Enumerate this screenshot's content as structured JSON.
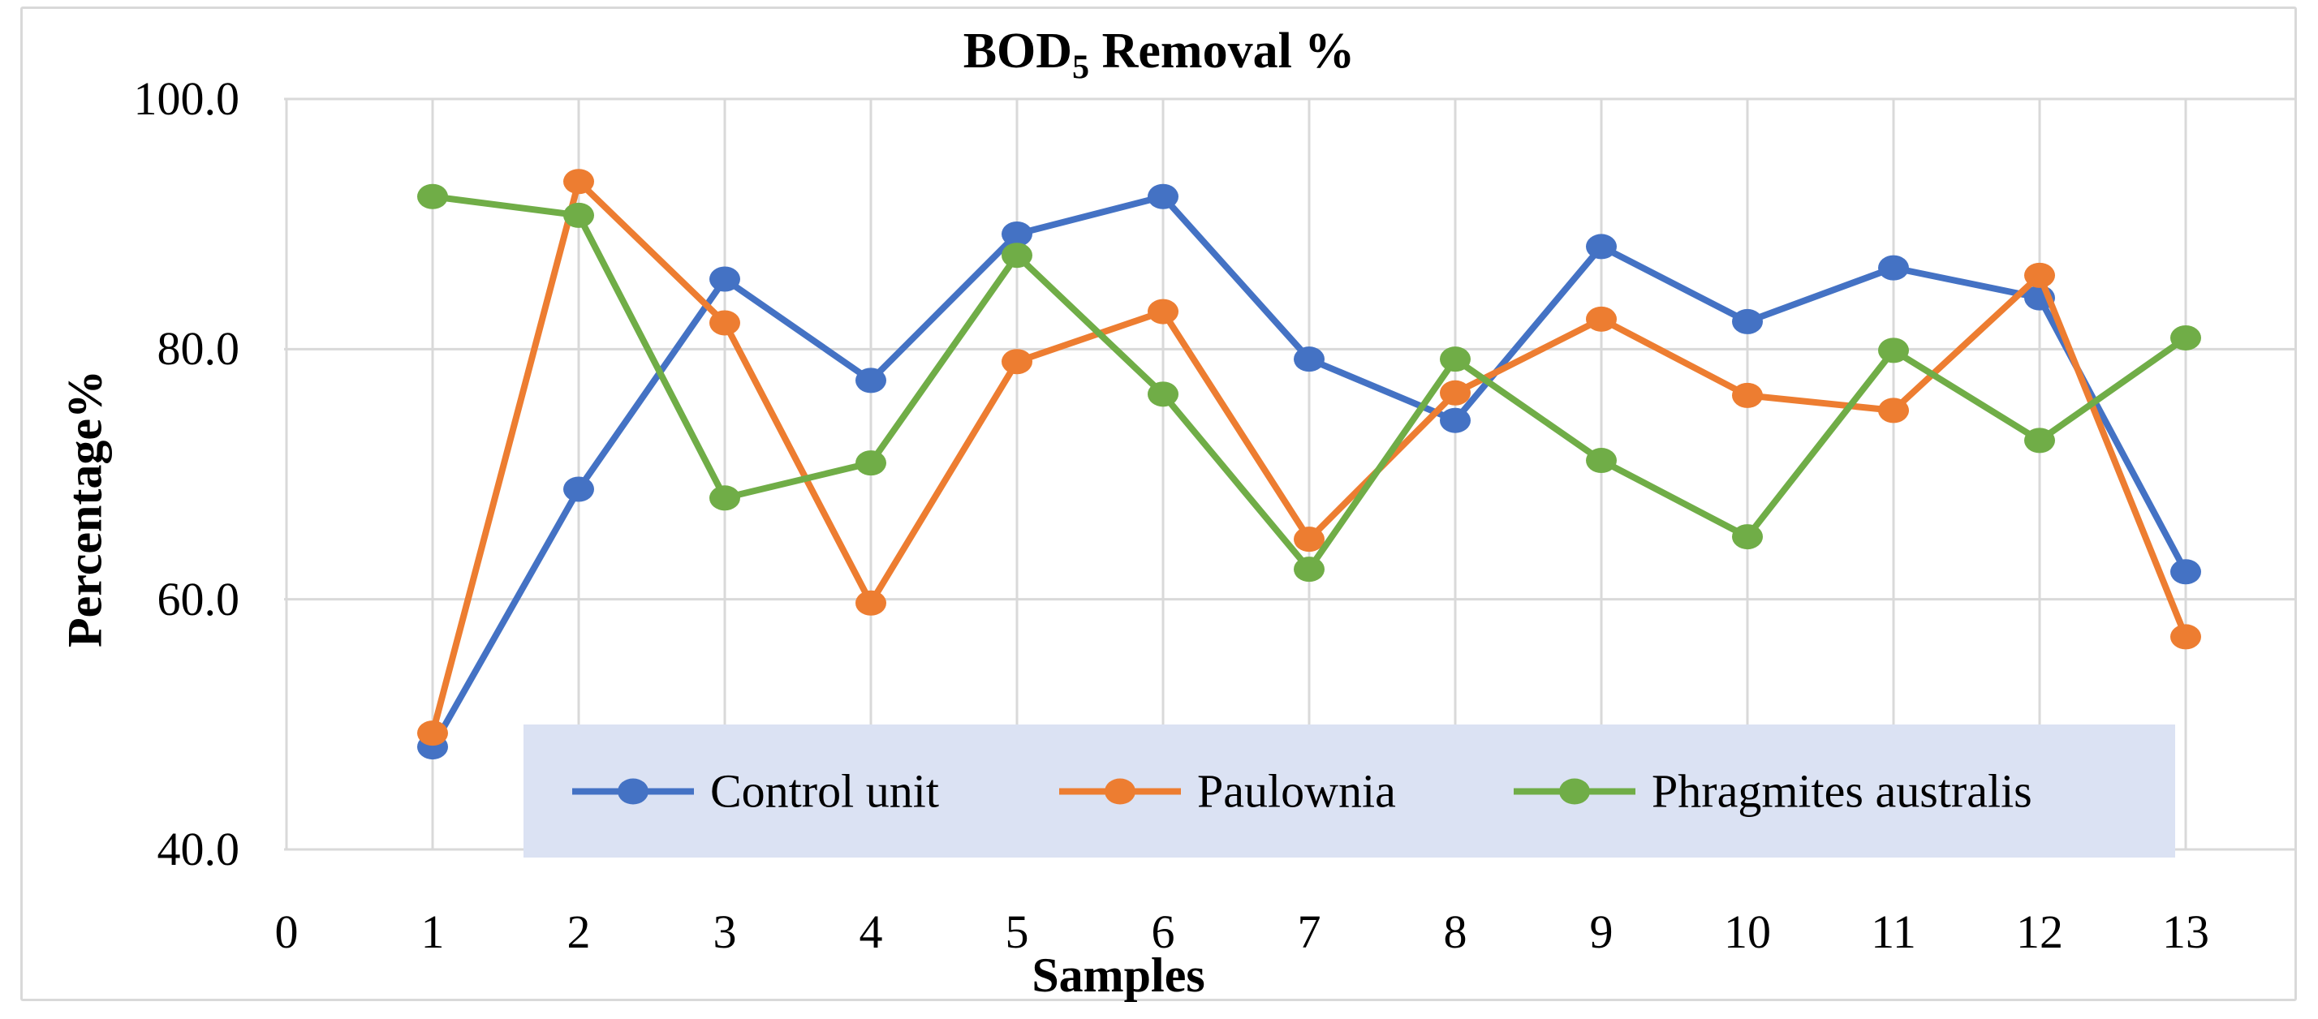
{
  "chart_data": {
    "type": "line",
    "title": {
      "prefix": "BOD",
      "subscript": "5",
      "suffix": " Removal %"
    },
    "xlabel": "Samples",
    "ylabel": "Percentage%",
    "x_values": [
      1,
      2,
      3,
      4,
      5,
      6,
      7,
      8,
      9,
      10,
      11,
      12,
      13
    ],
    "x_axis_ticks": [
      "0",
      "1",
      "2",
      "3",
      "4",
      "5",
      "6",
      "7",
      "8",
      "9",
      "10",
      "11",
      "12",
      "13"
    ],
    "y_axis_ticks": [
      "100.0",
      "80.0",
      "60.0",
      "40.0"
    ],
    "y_tick_values": [
      100,
      80,
      60,
      40
    ],
    "ylim": [
      40,
      100
    ],
    "xlim": [
      0,
      13
    ],
    "grid": true,
    "legend_position": "bottom-inside",
    "marker": "circle",
    "series": [
      {
        "name": "Control unit",
        "color": "#4472C4",
        "values": [
          48.2,
          68.8,
          85.6,
          77.5,
          89.2,
          92.2,
          79.2,
          74.3,
          88.2,
          82.2,
          86.5,
          84.1,
          62.2
        ]
      },
      {
        "name": "Paulownia",
        "color": "#ED7D31",
        "values": [
          49.3,
          93.4,
          82.1,
          59.7,
          79.0,
          83.0,
          64.8,
          76.5,
          82.4,
          76.3,
          75.1,
          85.9,
          57.0
        ]
      },
      {
        "name": "Phragmites australis",
        "color": "#70AD47",
        "values": [
          92.2,
          90.7,
          68.1,
          70.9,
          87.5,
          76.4,
          62.4,
          79.2,
          71.1,
          65.0,
          79.9,
          72.7,
          80.9
        ]
      }
    ],
    "colors": {
      "gridline": "#D9D9D9",
      "frame": "#D9D9D9",
      "legend_bg": "#DBE2F3",
      "text": "#000000"
    }
  }
}
